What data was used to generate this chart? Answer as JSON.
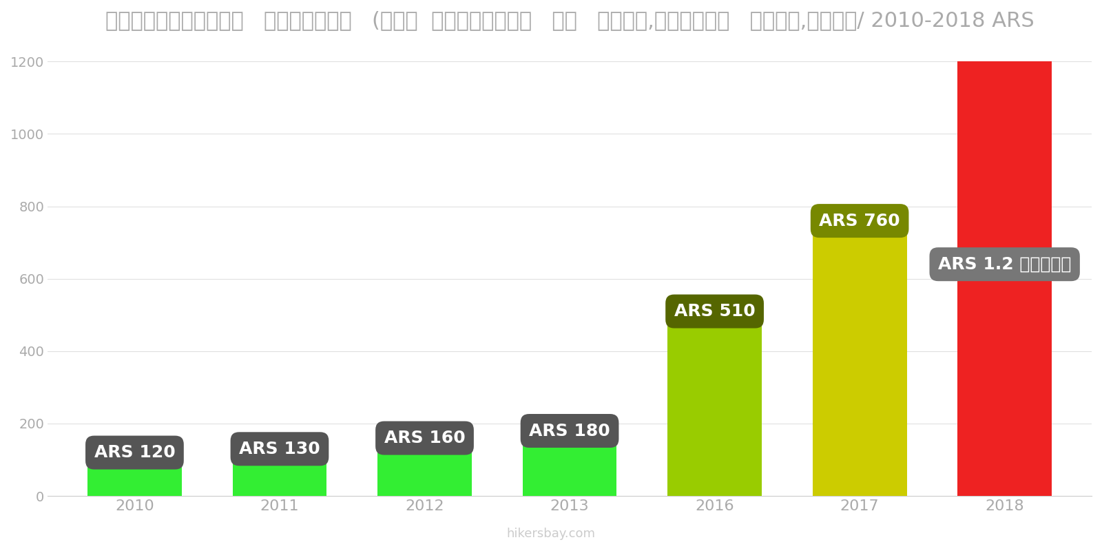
{
  "years": [
    "2010",
    "2011",
    "2012",
    "2013",
    "2016",
    "2017",
    "2018"
  ],
  "values": [
    120,
    130,
    160,
    180,
    510,
    760,
    1200
  ],
  "bar_colors": [
    "#33ee33",
    "#33ee33",
    "#33ee33",
    "#33ee33",
    "#99cc00",
    "#cccc00",
    "#ee2222"
  ],
  "label_texts": [
    "ARS 120",
    "ARS 130",
    "ARS 160",
    "ARS 180",
    "ARS 510",
    "ARS 760",
    "ARS 1.2 हज़ार"
  ],
  "label_bg_colors": [
    "#555555",
    "#555555",
    "#555555",
    "#555555",
    "#556600",
    "#778800",
    "#777777"
  ],
  "label_positions_y": [
    120,
    130,
    160,
    180,
    510,
    760,
    640
  ],
  "title": "अर्जेण्टीना   इंटरनेट   (१००  एमबीपीएस   या   अधिक,असीमित   डेटा,केबल/ 2010-2018 ARS",
  "ylim": [
    0,
    1250
  ],
  "yticks": [
    0,
    200,
    400,
    600,
    800,
    1000,
    1200
  ],
  "background_color": "#ffffff",
  "watermark": "hikersbay.com",
  "label_text_color": "#ffffff",
  "bar_width": 0.65,
  "title_fontsize": 22,
  "label_fontsize": 18
}
